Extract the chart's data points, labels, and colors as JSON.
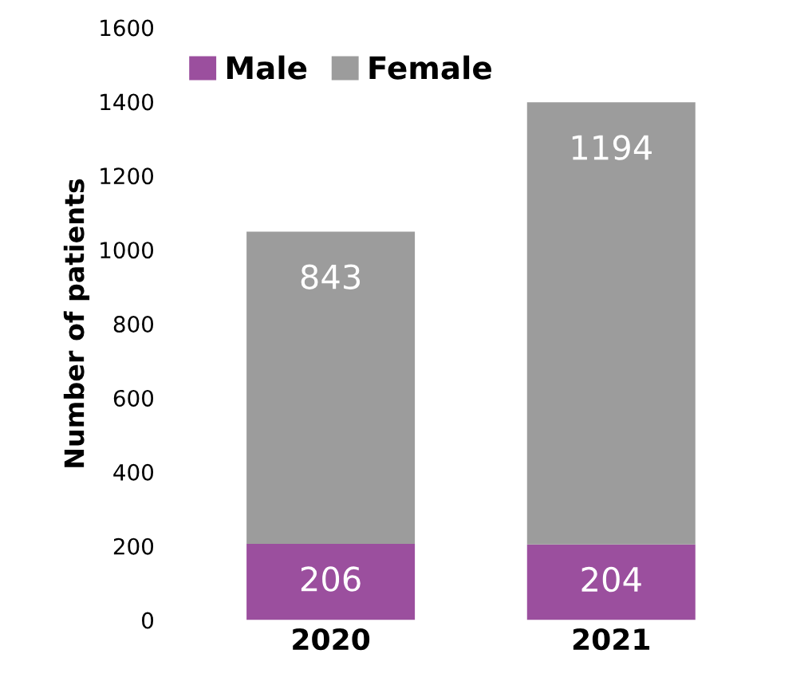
{
  "chart_data": {
    "type": "bar",
    "stacked": true,
    "ylabel": "Number of patients",
    "categories": [
      "2020",
      "2021"
    ],
    "series": [
      {
        "name": "Male",
        "color": "#9b4f9e",
        "values": [
          206,
          204
        ]
      },
      {
        "name": "Female",
        "color": "#9c9c9c",
        "values": [
          843,
          1194
        ]
      }
    ],
    "ylim": [
      0,
      1600
    ],
    "yticks": [
      0,
      200,
      400,
      600,
      800,
      1000,
      1200,
      1400,
      1600
    ],
    "grid": false,
    "legend": "top left",
    "data_labels": true
  }
}
